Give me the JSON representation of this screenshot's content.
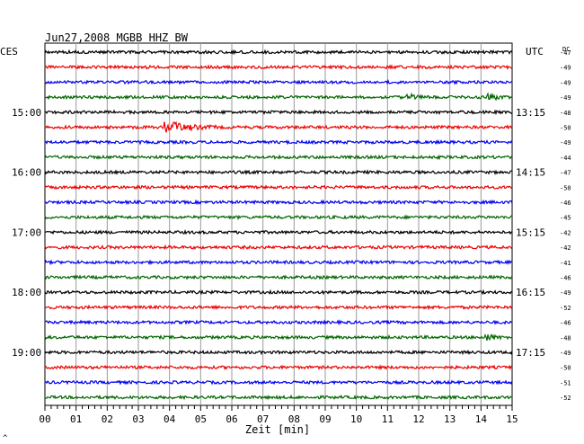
{
  "chart_data": {
    "type": "line",
    "title": "Jun27,2008   MGBB HHZ BW",
    "left_timezone": "CES",
    "right_timezone": "UTC",
    "dc_label": "DC",
    "xlabel": "Zeit [min]",
    "x_ticks": [
      "00",
      "01",
      "02",
      "03",
      "04",
      "05",
      "06",
      "07",
      "08",
      "09",
      "10",
      "11",
      "12",
      "13",
      "14",
      "15"
    ],
    "xlim": [
      0,
      15
    ],
    "left_hour_labels": [
      {
        "row": 4,
        "text": "15:00"
      },
      {
        "row": 8,
        "text": "16:00"
      },
      {
        "row": 12,
        "text": "17:00"
      },
      {
        "row": 16,
        "text": "18:00"
      },
      {
        "row": 20,
        "text": "19:00"
      }
    ],
    "right_hour_labels": [
      {
        "row": 4,
        "text": "13:15"
      },
      {
        "row": 8,
        "text": "14:15"
      },
      {
        "row": 12,
        "text": "15:15"
      },
      {
        "row": 16,
        "text": "16:15"
      },
      {
        "row": 20,
        "text": "17:15"
      }
    ],
    "trace_colors": [
      "#000000",
      "#ee0000",
      "#0000ee",
      "#006600"
    ],
    "dc_offsets": [
      -47,
      -49,
      -49,
      -49,
      -48,
      -50,
      -49,
      -44,
      -47,
      -50,
      -46,
      -45,
      -42,
      -42,
      -41,
      -46,
      -49,
      -52,
      -46,
      -48,
      -49,
      -50,
      -51,
      -52
    ],
    "events": [
      {
        "row": 3,
        "minute": 11.7,
        "amplitude": "small"
      },
      {
        "row": 3,
        "minute": 14.3,
        "amplitude": "small"
      },
      {
        "row": 5,
        "minute": 3.9,
        "amplitude": "large"
      },
      {
        "row": 19,
        "minute": 14.2,
        "amplitude": "small"
      }
    ],
    "footer_mark": "^"
  }
}
